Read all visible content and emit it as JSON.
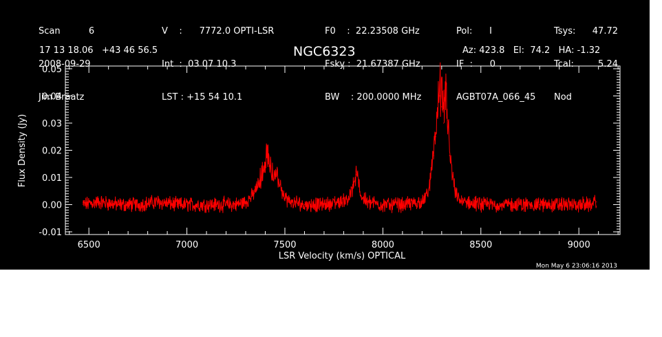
{
  "header": {
    "col1": [
      "Scan          6",
      "2008-09-29",
      "Jim Braatz"
    ],
    "col2": [
      "V    :      7772.0 OPTI-LSR",
      "Int  :  03 07 10.3",
      "LST : +15 54 10.1"
    ],
    "col3": [
      "F0    :  22.23508 GHz",
      "Fsky :  21.67387 GHz",
      "BW    : 200.0000 MHz"
    ],
    "col4": [
      "Pol:      I",
      "IF  :      0",
      "AGBT07A_066_45"
    ],
    "col5_labels": [
      "Tsys:",
      "Tcal:",
      "Nod"
    ],
    "col5_values": [
      "47.72",
      "5.24",
      ""
    ],
    "coords": "17 13 18.06   +43 46 56.5",
    "source": "NGC6323",
    "azel": "Az: 423.8   El:  74.2   HA: -1.32"
  },
  "timestamp": "Mon May  6 23:06:16 2013",
  "chart_data": {
    "type": "line",
    "xlabel": "LSR Velocity (km/s) OPTICAL",
    "ylabel": "Flux Density (Jy)",
    "xlim": [
      6380,
      9210
    ],
    "ylim": [
      -0.011,
      0.051
    ],
    "x_ticks": [
      6500,
      7000,
      7500,
      8000,
      8500,
      9000
    ],
    "y_ticks": [
      -0.01,
      0.0,
      0.01,
      0.02,
      0.03,
      0.04,
      0.05
    ],
    "y_tick_labels": [
      "-0.01",
      "0.00",
      "0.01",
      "0.02",
      "0.03",
      "0.04",
      "0.05"
    ],
    "x_tick_labels": [
      "6500",
      "7000",
      "7500",
      "8000",
      "8500",
      "9000"
    ],
    "series": [
      {
        "color": "#ff0000",
        "x": [
          6470,
          6550,
          6650,
          6750,
          6850,
          6950,
          7050,
          7150,
          7250,
          7300,
          7330,
          7360,
          7380,
          7400,
          7410,
          7420,
          7435,
          7450,
          7470,
          7490,
          7520,
          7600,
          7700,
          7780,
          7820,
          7850,
          7865,
          7875,
          7890,
          7920,
          8000,
          8100,
          8200,
          8230,
          8245,
          8260,
          8270,
          8280,
          8290,
          8300,
          8310,
          8320,
          8330,
          8340,
          8355,
          8370,
          8400,
          8500,
          8600,
          8700,
          8800,
          8900,
          9000,
          9050,
          9090
        ],
        "y": [
          0.0,
          0.001,
          0.0,
          0.0,
          0.001,
          0.0,
          0.0,
          0.0,
          0.0,
          0.001,
          0.003,
          0.006,
          0.01,
          0.014,
          0.018,
          0.015,
          0.011,
          0.01,
          0.008,
          0.004,
          0.001,
          0.0,
          0.0,
          0.001,
          0.002,
          0.006,
          0.011,
          0.008,
          0.003,
          0.001,
          0.0,
          0.0,
          0.001,
          0.004,
          0.01,
          0.018,
          0.025,
          0.033,
          0.04,
          0.036,
          0.03,
          0.038,
          0.031,
          0.018,
          0.01,
          0.004,
          0.001,
          0.0,
          0.0,
          0.0,
          0.0,
          0.0,
          0.0,
          0.0,
          0.001
        ]
      }
    ],
    "grid": false,
    "legend": "none"
  }
}
